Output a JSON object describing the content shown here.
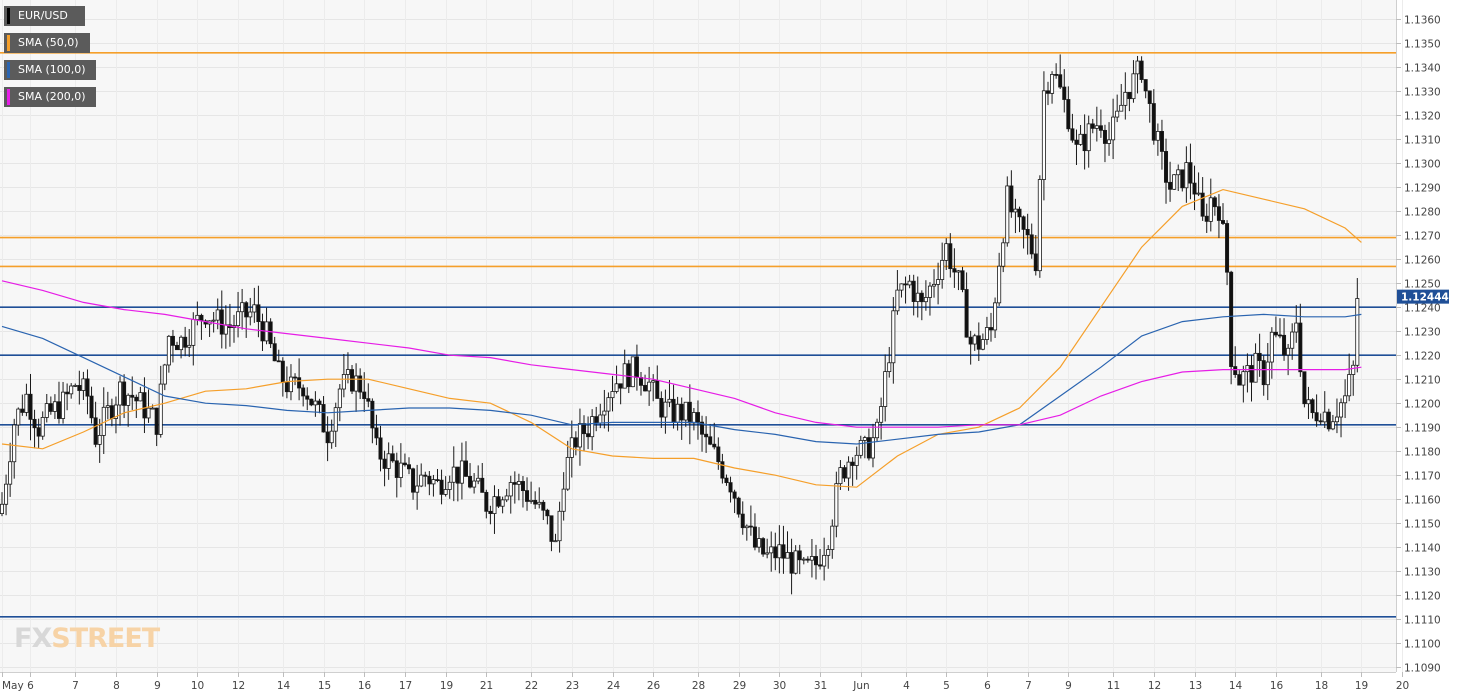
{
  "legend": [
    {
      "label": "EUR/USD",
      "color": "#000000"
    },
    {
      "label": "SMA (50,0)",
      "color": "#f59f2a"
    },
    {
      "label": "SMA (100,0)",
      "color": "#2a64b0"
    },
    {
      "label": "SMA (200,0)",
      "color": "#e61de6"
    }
  ],
  "watermark": {
    "prefix": "FX",
    "suffix": "STREET"
  },
  "chart_data": {
    "type": "candlestick",
    "symbol": "EUR/USD",
    "title": "",
    "xlabel": "",
    "ylabel": "",
    "ylim": [
      1.1088,
      1.1368
    ],
    "y_ticks": [
      "1.1360",
      "1.1350",
      "1.1340",
      "1.1330",
      "1.1320",
      "1.1310",
      "1.1300",
      "1.1290",
      "1.1280",
      "1.1270",
      "1.1260",
      "1.1250",
      "1.1240",
      "1.1230",
      "1.1220",
      "1.1210",
      "1.1200",
      "1.1190",
      "1.1180",
      "1.1170",
      "1.1160",
      "1.1150",
      "1.1140",
      "1.1130",
      "1.1120",
      "1.1110",
      "1.1100",
      "1.1090"
    ],
    "x_tick_labels": [
      {
        "label": "May",
        "bar": 0
      },
      {
        "label": "6",
        "bar": 7
      },
      {
        "label": "7",
        "bar": 18
      },
      {
        "label": "8",
        "bar": 28
      },
      {
        "label": "9",
        "bar": 38
      },
      {
        "label": "10",
        "bar": 48
      },
      {
        "label": "12",
        "bar": 58
      },
      {
        "label": "14",
        "bar": 69
      },
      {
        "label": "15",
        "bar": 79
      },
      {
        "label": "16",
        "bar": 89
      },
      {
        "label": "17",
        "bar": 99
      },
      {
        "label": "19",
        "bar": 109
      },
      {
        "label": "21",
        "bar": 119
      },
      {
        "label": "22",
        "bar": 130
      },
      {
        "label": "23",
        "bar": 140
      },
      {
        "label": "24",
        "bar": 150
      },
      {
        "label": "26",
        "bar": 160
      },
      {
        "label": "28",
        "bar": 171
      },
      {
        "label": "29",
        "bar": 181
      },
      {
        "label": "30",
        "bar": 191
      },
      {
        "label": "31",
        "bar": 201
      },
      {
        "label": "Jun",
        "bar": 211
      },
      {
        "label": "4",
        "bar": 222
      },
      {
        "label": "5",
        "bar": 232
      },
      {
        "label": "6",
        "bar": 242
      },
      {
        "label": "7",
        "bar": 252
      },
      {
        "label": "9",
        "bar": 262
      },
      {
        "label": "11",
        "bar": 273
      },
      {
        "label": "12",
        "bar": 283
      },
      {
        "label": "13",
        "bar": 293
      },
      {
        "label": "14",
        "bar": 303
      },
      {
        "label": "16",
        "bar": 313
      },
      {
        "label": "18",
        "bar": 324
      },
      {
        "label": "19",
        "bar": 334
      },
      {
        "label": "20",
        "bar": 344
      }
    ],
    "horizontal_levels": [
      {
        "value": 1.1346,
        "color": "#f59f2a"
      },
      {
        "value": 1.1269,
        "color": "#f59f2a"
      },
      {
        "value": 1.1257,
        "color": "#f59f2a"
      },
      {
        "value": 1.124,
        "color": "#1f4f97"
      },
      {
        "value": 1.122,
        "color": "#1f4f97"
      },
      {
        "value": 1.1191,
        "color": "#1f4f97"
      },
      {
        "value": 1.1111,
        "color": "#1f4f97"
      }
    ],
    "last_price": "1.12444",
    "last_price_value": 1.12444,
    "anchors": [
      [
        0,
        1.1158
      ],
      [
        3,
        1.1192
      ],
      [
        6,
        1.1203
      ],
      [
        9,
        1.119
      ],
      [
        12,
        1.1196
      ],
      [
        15,
        1.12
      ],
      [
        18,
        1.1208
      ],
      [
        21,
        1.1203
      ],
      [
        23,
        1.1186
      ],
      [
        26,
        1.1196
      ],
      [
        29,
        1.1206
      ],
      [
        32,
        1.1203
      ],
      [
        35,
        1.1198
      ],
      [
        38,
        1.1192
      ],
      [
        41,
        1.1228
      ],
      [
        44,
        1.1226
      ],
      [
        47,
        1.1232
      ],
      [
        50,
        1.1238
      ],
      [
        53,
        1.1234
      ],
      [
        56,
        1.1232
      ],
      [
        59,
        1.1236
      ],
      [
        62,
        1.1238
      ],
      [
        65,
        1.1228
      ],
      [
        68,
        1.1212
      ],
      [
        71,
        1.1206
      ],
      [
        74,
        1.1208
      ],
      [
        77,
        1.1198
      ],
      [
        80,
        1.1188
      ],
      [
        83,
        1.1206
      ],
      [
        86,
        1.121
      ],
      [
        89,
        1.1206
      ],
      [
        92,
        1.118
      ],
      [
        95,
        1.1176
      ],
      [
        98,
        1.1172
      ],
      [
        101,
        1.1166
      ],
      [
        104,
        1.117
      ],
      [
        107,
        1.1166
      ],
      [
        110,
        1.1172
      ],
      [
        113,
        1.117
      ],
      [
        116,
        1.1166
      ],
      [
        119,
        1.1158
      ],
      [
        122,
        1.1162
      ],
      [
        125,
        1.1168
      ],
      [
        128,
        1.1164
      ],
      [
        131,
        1.1158
      ],
      [
        134,
        1.115
      ],
      [
        136,
        1.114
      ],
      [
        138,
        1.117
      ],
      [
        141,
        1.1185
      ],
      [
        144,
        1.119
      ],
      [
        147,
        1.12
      ],
      [
        150,
        1.1208
      ],
      [
        153,
        1.1212
      ],
      [
        156,
        1.1214
      ],
      [
        159,
        1.1208
      ],
      [
        161,
        1.12
      ],
      [
        164,
        1.1196
      ],
      [
        167,
        1.1196
      ],
      [
        170,
        1.1193
      ],
      [
        173,
        1.1183
      ],
      [
        176,
        1.1176
      ],
      [
        179,
        1.1167
      ],
      [
        182,
        1.1153
      ],
      [
        185,
        1.114
      ],
      [
        188,
        1.1136
      ],
      [
        191,
        1.1138
      ],
      [
        194,
        1.1134
      ],
      [
        197,
        1.113
      ],
      [
        200,
        1.1133
      ],
      [
        203,
        1.1145
      ],
      [
        206,
        1.117
      ],
      [
        209,
        1.118
      ],
      [
        212,
        1.118
      ],
      [
        215,
        1.1187
      ],
      [
        217,
        1.121
      ],
      [
        220,
        1.1245
      ],
      [
        223,
        1.125
      ],
      [
        226,
        1.124
      ],
      [
        229,
        1.1252
      ],
      [
        232,
        1.1265
      ],
      [
        235,
        1.125
      ],
      [
        238,
        1.1225
      ],
      [
        240,
        1.1225
      ],
      [
        243,
        1.123
      ],
      [
        245,
        1.126
      ],
      [
        247,
        1.1285
      ],
      [
        249,
        1.1275
      ],
      [
        252,
        1.1268
      ],
      [
        254,
        1.126
      ],
      [
        256,
        1.133
      ],
      [
        258,
        1.134
      ],
      [
        260,
        1.133
      ],
      [
        262,
        1.132
      ],
      [
        264,
        1.1305
      ],
      [
        266,
        1.131
      ],
      [
        268,
        1.1315
      ],
      [
        270,
        1.1318
      ],
      [
        272,
        1.131
      ],
      [
        274,
        1.1318
      ],
      [
        276,
        1.133
      ],
      [
        278,
        1.1334
      ],
      [
        280,
        1.134
      ],
      [
        281,
        1.133
      ],
      [
        283,
        1.1315
      ],
      [
        285,
        1.13
      ],
      [
        287,
        1.129
      ],
      [
        289,
        1.1292
      ],
      [
        291,
        1.1297
      ],
      [
        293,
        1.129
      ],
      [
        295,
        1.1275
      ],
      [
        297,
        1.1285
      ],
      [
        299,
        1.1282
      ],
      [
        300,
        1.127
      ],
      [
        301,
        1.1255
      ],
      [
        302,
        1.122
      ],
      [
        304,
        1.121
      ],
      [
        306,
        1.1212
      ],
      [
        308,
        1.1215
      ],
      [
        310,
        1.1212
      ],
      [
        312,
        1.1228
      ],
      [
        314,
        1.1225
      ],
      [
        316,
        1.1218
      ],
      [
        318,
        1.1235
      ],
      [
        320,
        1.12
      ],
      [
        322,
        1.1195
      ],
      [
        324,
        1.1198
      ],
      [
        326,
        1.1194
      ],
      [
        328,
        1.1198
      ],
      [
        330,
        1.1202
      ],
      [
        332,
        1.1214
      ],
      [
        333,
        1.1244
      ]
    ],
    "series": [
      {
        "name": "SMA (50,0)",
        "color": "#f59f2a",
        "points": [
          [
            0,
            1.1183
          ],
          [
            10,
            1.1181
          ],
          [
            20,
            1.1188
          ],
          [
            30,
            1.1196
          ],
          [
            40,
            1.12
          ],
          [
            50,
            1.1205
          ],
          [
            60,
            1.1206
          ],
          [
            70,
            1.1209
          ],
          [
            80,
            1.121
          ],
          [
            90,
            1.121
          ],
          [
            100,
            1.1206
          ],
          [
            110,
            1.1202
          ],
          [
            120,
            1.12
          ],
          [
            130,
            1.1192
          ],
          [
            140,
            1.1181
          ],
          [
            150,
            1.1178
          ],
          [
            160,
            1.1177
          ],
          [
            170,
            1.1177
          ],
          [
            180,
            1.1173
          ],
          [
            190,
            1.117
          ],
          [
            200,
            1.1166
          ],
          [
            210,
            1.1165
          ],
          [
            220,
            1.1178
          ],
          [
            230,
            1.1187
          ],
          [
            240,
            1.119
          ],
          [
            250,
            1.1198
          ],
          [
            260,
            1.1215
          ],
          [
            270,
            1.124
          ],
          [
            280,
            1.1265
          ],
          [
            290,
            1.1282
          ],
          [
            300,
            1.1289
          ],
          [
            310,
            1.1285
          ],
          [
            320,
            1.1281
          ],
          [
            330,
            1.1273
          ],
          [
            334,
            1.1267
          ]
        ]
      },
      {
        "name": "SMA (100,0)",
        "color": "#2a64b0",
        "points": [
          [
            0,
            1.1232
          ],
          [
            10,
            1.1227
          ],
          [
            20,
            1.1219
          ],
          [
            30,
            1.1211
          ],
          [
            40,
            1.1203
          ],
          [
            50,
            1.12
          ],
          [
            60,
            1.1199
          ],
          [
            70,
            1.1197
          ],
          [
            80,
            1.1196
          ],
          [
            90,
            1.1197
          ],
          [
            100,
            1.1198
          ],
          [
            110,
            1.1198
          ],
          [
            120,
            1.1197
          ],
          [
            130,
            1.1195
          ],
          [
            140,
            1.1191
          ],
          [
            150,
            1.1192
          ],
          [
            160,
            1.1192
          ],
          [
            170,
            1.1192
          ],
          [
            180,
            1.1189
          ],
          [
            190,
            1.1187
          ],
          [
            200,
            1.1184
          ],
          [
            210,
            1.1183
          ],
          [
            220,
            1.1185
          ],
          [
            230,
            1.1187
          ],
          [
            240,
            1.1188
          ],
          [
            250,
            1.1191
          ],
          [
            260,
            1.1203
          ],
          [
            270,
            1.1215
          ],
          [
            280,
            1.1228
          ],
          [
            290,
            1.1234
          ],
          [
            300,
            1.1236
          ],
          [
            310,
            1.1237
          ],
          [
            320,
            1.1236
          ],
          [
            330,
            1.1236
          ],
          [
            334,
            1.1237
          ]
        ]
      },
      {
        "name": "SMA (200,0)",
        "color": "#e61de6",
        "points": [
          [
            0,
            1.1251
          ],
          [
            10,
            1.1247
          ],
          [
            20,
            1.1242
          ],
          [
            30,
            1.1239
          ],
          [
            40,
            1.1237
          ],
          [
            50,
            1.1234
          ],
          [
            60,
            1.1231
          ],
          [
            70,
            1.1229
          ],
          [
            80,
            1.1227
          ],
          [
            90,
            1.1225
          ],
          [
            100,
            1.1223
          ],
          [
            110,
            1.122
          ],
          [
            120,
            1.1219
          ],
          [
            130,
            1.1216
          ],
          [
            140,
            1.1214
          ],
          [
            150,
            1.1212
          ],
          [
            160,
            1.121
          ],
          [
            170,
            1.1206
          ],
          [
            180,
            1.1202
          ],
          [
            190,
            1.1196
          ],
          [
            200,
            1.1192
          ],
          [
            210,
            1.119
          ],
          [
            220,
            1.119
          ],
          [
            230,
            1.119
          ],
          [
            240,
            1.1191
          ],
          [
            250,
            1.1191
          ],
          [
            260,
            1.1195
          ],
          [
            270,
            1.1203
          ],
          [
            280,
            1.1209
          ],
          [
            290,
            1.1213
          ],
          [
            300,
            1.1214
          ],
          [
            310,
            1.1214
          ],
          [
            320,
            1.1214
          ],
          [
            330,
            1.1214
          ],
          [
            334,
            1.1215
          ]
        ]
      }
    ],
    "grid": true,
    "legend_position": "top-left",
    "y_axis_position": "right"
  }
}
